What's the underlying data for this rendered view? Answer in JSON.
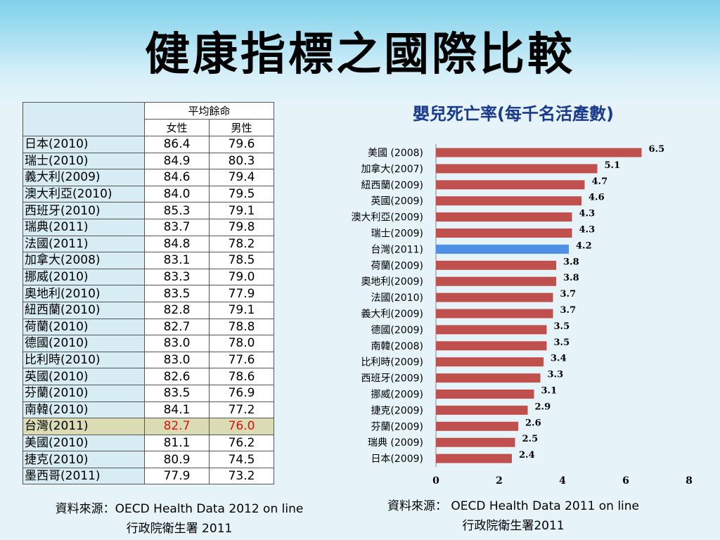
{
  "slide": {
    "title": "健康指標之國際比較"
  },
  "table": {
    "header_group": "平均餘命",
    "header_female": "女性",
    "header_male": "男性",
    "rows": [
      {
        "country": "日本(2010)",
        "female": "86.4",
        "male": "79.6"
      },
      {
        "country": "瑞士(2010)",
        "female": "84.9",
        "male": "80.3"
      },
      {
        "country": "義大利(2009)",
        "female": "84.6",
        "male": "79.4"
      },
      {
        "country": "澳大利亞(2010)",
        "female": "84.0",
        "male": "79.5"
      },
      {
        "country": "西班牙(2010)",
        "female": "85.3",
        "male": "79.1"
      },
      {
        "country": "瑞典(2011)",
        "female": "83.7",
        "male": "79.8"
      },
      {
        "country": "法國(2011)",
        "female": "84.8",
        "male": "78.2"
      },
      {
        "country": "加拿大(2008)",
        "female": "83.1",
        "male": "78.5"
      },
      {
        "country": "挪威(2010)",
        "female": "83.3",
        "male": "79.0"
      },
      {
        "country": "奧地利(2010)",
        "female": "83.5",
        "male": "77.9"
      },
      {
        "country": "紐西蘭(2010)",
        "female": "82.8",
        "male": "79.1"
      },
      {
        "country": "荷蘭(2010)",
        "female": "82.7",
        "male": "78.8"
      },
      {
        "country": "德國(2010)",
        "female": "83.0",
        "male": "78.0"
      },
      {
        "country": "比利時(2010)",
        "female": "83.0",
        "male": "77.6"
      },
      {
        "country": "英國(2010)",
        "female": "82.6",
        "male": "78.6"
      },
      {
        "country": "芬蘭(2010)",
        "female": "83.5",
        "male": "76.9"
      },
      {
        "country": "南韓(2010)",
        "female": "84.1",
        "male": "77.2"
      },
      {
        "country": "台灣(2011)",
        "female": "82.7",
        "male": "76.0",
        "highlight": true
      },
      {
        "country": "美國(2010)",
        "female": "81.1",
        "male": "76.2"
      },
      {
        "country": "捷克(2010)",
        "female": "80.9",
        "male": "74.5"
      },
      {
        "country": "墨西哥(2011)",
        "female": "77.9",
        "male": "73.2"
      }
    ],
    "source_line1": "資料來源：OECD Health Data 2012  on line",
    "source_line2": "行政院衛生署 2011"
  },
  "chart_data": {
    "type": "bar",
    "orientation": "horizontal",
    "title": "嬰兒死亡率(每千名活產數)",
    "categories": [
      "美國 (2008)",
      "加拿大(2007)",
      "紐西蘭(2009)",
      "英國(2009)",
      "澳大利亞(2009)",
      "瑞士(2009)",
      "台灣(2011)",
      "荷蘭(2009)",
      "奧地利(2009)",
      "法國(2010)",
      "義大利(2009)",
      "德國(2009)",
      "南韓(2008)",
      "比利時(2009)",
      "西班牙(2009)",
      "挪威(2009)",
      "捷克(2009)",
      "芬蘭(2009)",
      "瑞典 (2009)",
      "日本(2009)"
    ],
    "values": [
      6.5,
      5.1,
      4.7,
      4.6,
      4.3,
      4.3,
      4.2,
      3.8,
      3.8,
      3.7,
      3.7,
      3.5,
      3.5,
      3.4,
      3.3,
      3.1,
      2.9,
      2.6,
      2.5,
      2.4
    ],
    "value_labels": [
      "6.5",
      "5.1",
      "4.7",
      "4.6",
      "4.3",
      "4.3",
      "4.2",
      "3.8",
      "3.8",
      "3.7",
      "3.7",
      "3.5",
      "3.5",
      "3.4",
      "3.3",
      "3.1",
      "2.9",
      "2.6",
      "2.5",
      "2.4"
    ],
    "highlight_category": "台灣(2011)",
    "xlim": [
      0,
      8
    ],
    "xticks": [
      "0",
      "2",
      "4",
      "6",
      "8"
    ],
    "bar_color": "#c0504d",
    "highlight_color": "#4f8fe6",
    "grid": false,
    "source_line1": "資料來源： OECD Health Data 2011 on line",
    "source_line2": "行政院衛生署2011"
  }
}
